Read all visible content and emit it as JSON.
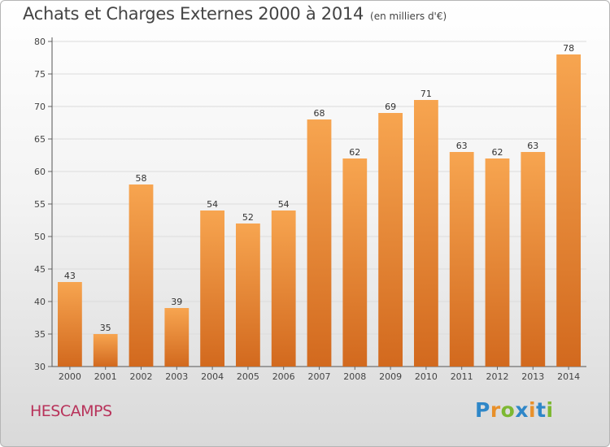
{
  "chart_data": {
    "type": "bar",
    "title": "Achats et Charges Externes 2000 à 2014",
    "unit_note": "(en milliers d'€)",
    "categories": [
      "2000",
      "2001",
      "2002",
      "2003",
      "2004",
      "2005",
      "2006",
      "2007",
      "2008",
      "2009",
      "2010",
      "2011",
      "2012",
      "2013",
      "2014"
    ],
    "values": [
      43,
      35,
      58,
      39,
      54,
      52,
      54,
      68,
      62,
      69,
      71,
      63,
      62,
      63,
      78
    ],
    "ylim": [
      30,
      80
    ],
    "yticks": [
      30,
      35,
      40,
      45,
      50,
      55,
      60,
      65,
      70,
      75,
      80
    ],
    "grid": true,
    "bar_color_top": "#f7a550",
    "bar_color_bottom": "#d2691e"
  },
  "city": "HESCAMPS",
  "logo": {
    "letters": [
      "P",
      "r",
      "o",
      "x",
      "i",
      "t",
      "i"
    ],
    "colors": [
      "#2f87c8",
      "#e8902a",
      "#7db832",
      "#2f87c8",
      "#e8902a",
      "#2f87c8",
      "#7db832"
    ]
  }
}
